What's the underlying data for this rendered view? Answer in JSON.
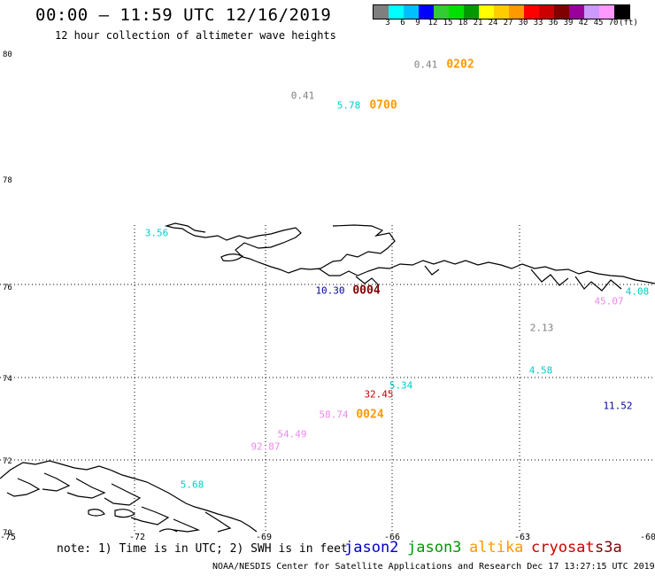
{
  "title": "00:00 – 11:59 UTC 12/16/2019",
  "subtitle": "12 hour collection of altimeter wave heights",
  "colorbar": {
    "colors": [
      "#7f7f7f",
      "#00ffff",
      "#00bfff",
      "#0000ff",
      "#33cc33",
      "#00e000",
      "#009900",
      "#ffff00",
      "#ffcc00",
      "#ff9900",
      "#ff0000",
      "#cc0000",
      "#800000",
      "#990099",
      "#cc99ff",
      "#ff99ff",
      "#000000"
    ],
    "labels": [
      "3",
      "6",
      "9",
      "12",
      "15",
      "18",
      "21",
      "24",
      "27",
      "30",
      "33",
      "36",
      "39",
      "42",
      "45",
      "70",
      "(ft)"
    ]
  },
  "lat_labels": [
    "80",
    "78",
    "76",
    "74",
    "72",
    "70"
  ],
  "lon_labels": [
    "-75",
    "-72",
    "-69",
    "-66",
    "-63",
    "-60"
  ],
  "observations": [
    {
      "v": "0.41",
      "color": "#7f7f7f"
    },
    {
      "v": "0.41",
      "color": "#7f7f7f"
    },
    {
      "v": "5.78",
      "color": "#00cccc"
    },
    {
      "v": "3.56",
      "color": "#00cccc"
    },
    {
      "v": "10.30",
      "color": "#000099"
    },
    {
      "v": "4.08",
      "color": "#00cccc"
    },
    {
      "v": "45.07",
      "color": "#ee88ee"
    },
    {
      "v": "2.13",
      "color": "#7f7f7f"
    },
    {
      "v": "4.58",
      "color": "#00cccc"
    },
    {
      "v": "5.34",
      "color": "#00cccc"
    },
    {
      "v": "32.45",
      "color": "#cc0000"
    },
    {
      "v": "58.74",
      "color": "#ee88ee"
    },
    {
      "v": "11.52",
      "color": "#000099"
    },
    {
      "v": "54.49",
      "color": "#ee88ee"
    },
    {
      "v": "92.87",
      "color": "#ee88ee"
    },
    {
      "v": "5.68",
      "color": "#00cccc"
    }
  ],
  "times": [
    {
      "t": "0202",
      "color": "#ff9900"
    },
    {
      "t": "0700",
      "color": "#ff9900"
    },
    {
      "t": "0004",
      "color": "#800000"
    },
    {
      "t": "0024",
      "color": "#ff9900"
    }
  ],
  "note": "note: 1) Time is in UTC; 2) SWH is in feet",
  "legend": [
    {
      "name": "jason2",
      "color": "#0000cc"
    },
    {
      "name": "jason3",
      "color": "#009900"
    },
    {
      "name": "altika",
      "color": "#ff9900"
    },
    {
      "name": "cryosat",
      "color": "#cc0000"
    },
    {
      "name": "s3a",
      "color": "#800000"
    }
  ],
  "footer": "NOAA/NESDIS Center for Satellite Applications and Research    Dec 17 13:27:15 UTC 2019"
}
